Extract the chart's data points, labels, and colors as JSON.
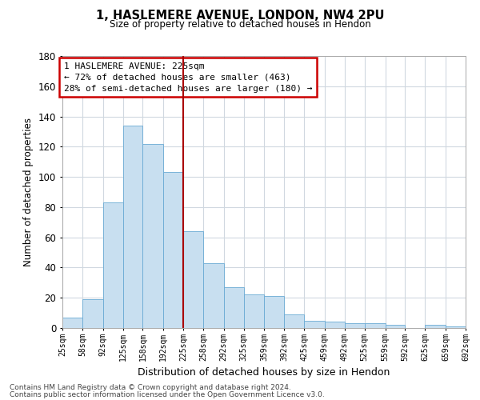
{
  "title1": "1, HASLEMERE AVENUE, LONDON, NW4 2PU",
  "title2": "Size of property relative to detached houses in Hendon",
  "xlabel": "Distribution of detached houses by size in Hendon",
  "ylabel": "Number of detached properties",
  "footnote1": "Contains HM Land Registry data © Crown copyright and database right 2024.",
  "footnote2": "Contains public sector information licensed under the Open Government Licence v3.0.",
  "annotation_line1": "1 HASLEMERE AVENUE: 225sqm",
  "annotation_line2": "← 72% of detached houses are smaller (463)",
  "annotation_line3": "28% of semi-detached houses are larger (180) →",
  "property_size": 225,
  "bin_edges": [
    25,
    58,
    92,
    125,
    158,
    192,
    225,
    258,
    292,
    325,
    359,
    392,
    425,
    459,
    492,
    525,
    559,
    592,
    625,
    659,
    692
  ],
  "bar_heights": [
    7,
    19,
    83,
    134,
    122,
    103,
    64,
    43,
    27,
    22,
    21,
    9,
    5,
    4,
    3,
    3,
    2,
    0,
    2,
    1
  ],
  "bar_color": "#c8dff0",
  "bar_edge_color": "#6aaad4",
  "vline_color": "#aa0000",
  "vline_x": 225,
  "annotation_box_color": "#cc0000",
  "ylim": [
    0,
    180
  ],
  "xlim": [
    25,
    692
  ],
  "yticks": [
    0,
    20,
    40,
    60,
    80,
    100,
    120,
    140,
    160,
    180
  ],
  "xtick_labels": [
    "25sqm",
    "58sqm",
    "92sqm",
    "125sqm",
    "158sqm",
    "192sqm",
    "225sqm",
    "258sqm",
    "292sqm",
    "325sqm",
    "359sqm",
    "392sqm",
    "425sqm",
    "459sqm",
    "492sqm",
    "525sqm",
    "559sqm",
    "592sqm",
    "625sqm",
    "659sqm",
    "692sqm"
  ],
  "xtick_positions": [
    25,
    58,
    92,
    125,
    158,
    192,
    225,
    258,
    292,
    325,
    359,
    392,
    425,
    459,
    492,
    525,
    559,
    592,
    625,
    659,
    692
  ],
  "background_color": "#ffffff",
  "grid_color": "#d0d8e0"
}
